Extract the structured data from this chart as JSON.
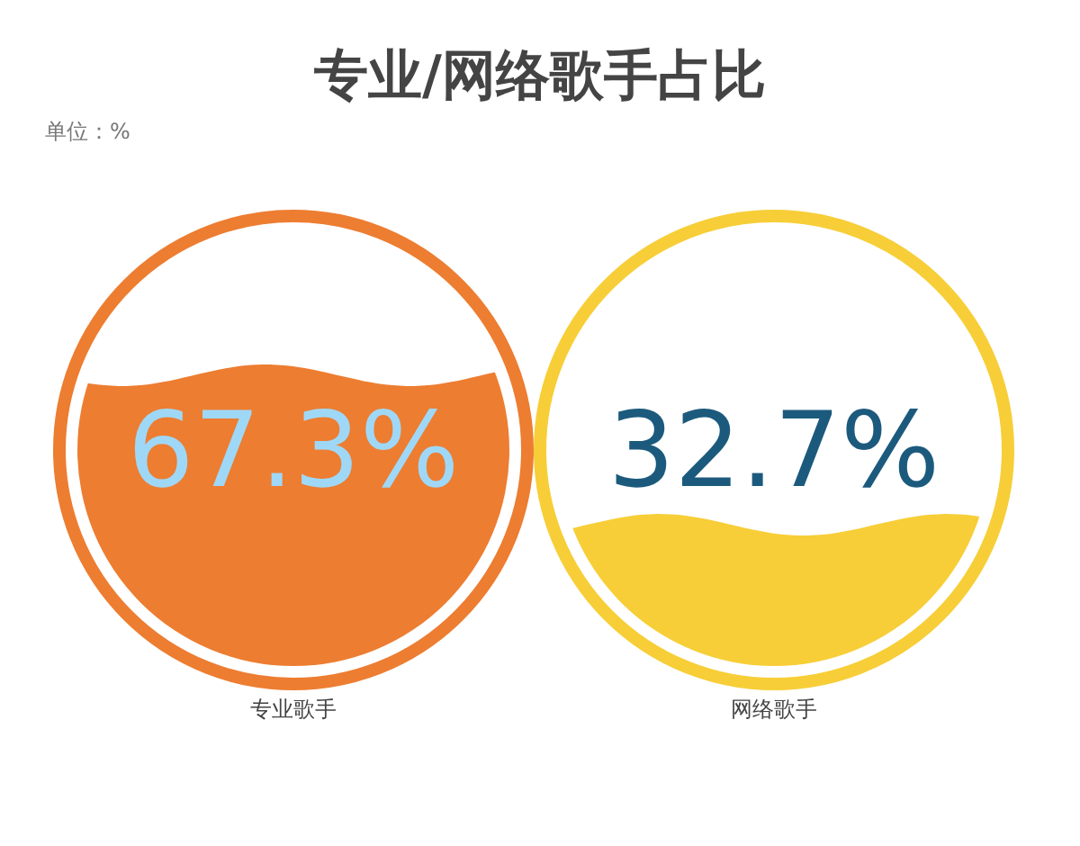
{
  "chart_data": {
    "type": "other",
    "title": "专业/网络歌手占比",
    "subtitle": "单位：%",
    "categories": [
      "专业歌手",
      "网络歌手"
    ],
    "values": [
      67.3,
      32.7
    ],
    "colors": [
      "#ed7d31",
      "#f7ce37"
    ],
    "value_labels": [
      "67.3%",
      "32.7%"
    ]
  }
}
